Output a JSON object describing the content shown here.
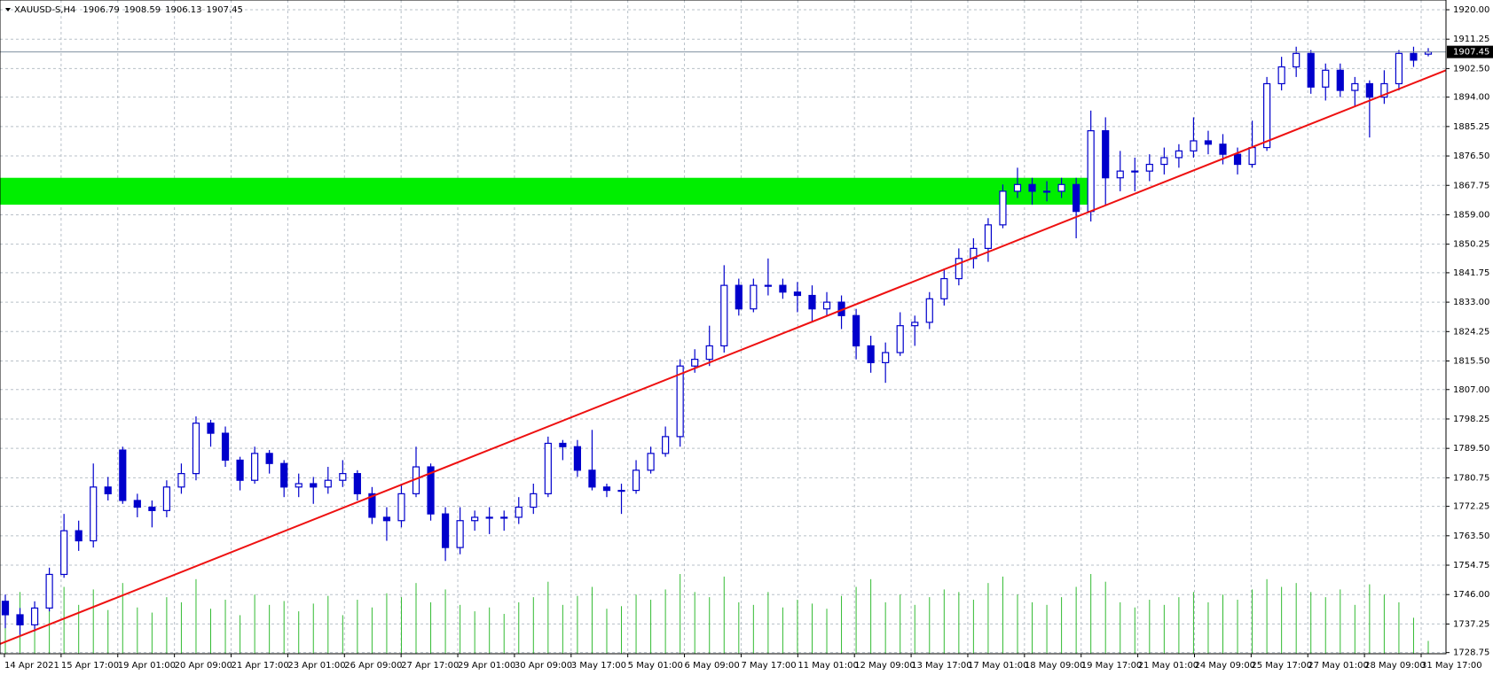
{
  "chart_data": {
    "type": "candlestick",
    "symbol": "XAUUSD-S,H4",
    "ylim": [
      1728.4,
      1922.9
    ],
    "yticks": [
      {
        "value": 1920,
        "label": "1920.00"
      },
      {
        "value": 1911.25,
        "label": "1911.25"
      },
      {
        "value": 1902.5,
        "label": "1902.50"
      },
      {
        "value": 1894,
        "label": "1894.00"
      },
      {
        "value": 1885.25,
        "label": "1885.25"
      },
      {
        "value": 1876.5,
        "label": "1876.50"
      },
      {
        "value": 1867.75,
        "label": "1867.75"
      },
      {
        "value": 1859,
        "label": "1859.00"
      },
      {
        "value": 1850.25,
        "label": "1850.25"
      },
      {
        "value": 1841.75,
        "label": "1841.75"
      },
      {
        "value": 1833,
        "label": "1833.00"
      },
      {
        "value": 1824.25,
        "label": "1824.25"
      },
      {
        "value": 1815.5,
        "label": "1815.50"
      },
      {
        "value": 1807,
        "label": "1807.00"
      },
      {
        "value": 1798.25,
        "label": "1798.25"
      },
      {
        "value": 1789.5,
        "label": "1789.50"
      },
      {
        "value": 1780.75,
        "label": "1780.75"
      },
      {
        "value": 1772.25,
        "label": "1772.25"
      },
      {
        "value": 1763.5,
        "label": "1763.50"
      },
      {
        "value": 1754.75,
        "label": "1754.75"
      },
      {
        "value": 1746,
        "label": "1746.00"
      },
      {
        "value": 1737.25,
        "label": "1737.25"
      },
      {
        "value": 1728.75,
        "label": "1728.75"
      }
    ],
    "x_labels": [
      "14 Apr 2021",
      "15 Apr 17:00",
      "19 Apr 01:00",
      "20 Apr 09:00",
      "21 Apr 17:00",
      "23 Apr 01:00",
      "26 Apr 09:00",
      "27 Apr 17:00",
      "29 Apr 01:00",
      "30 Apr 09:00",
      "3 May 17:00",
      "5 May 01:00",
      "6 May 09:00",
      "7 May 17:00",
      "11 May 01:00",
      "12 May 09:00",
      "13 May 17:00",
      "17 May 01:00",
      "18 May 09:00",
      "19 May 17:00",
      "21 May 01:00",
      "24 May 09:00",
      "25 May 17:00",
      "27 May 01:00",
      "28 May 09:00",
      "31 May 17:00"
    ],
    "grid": true,
    "candle_color": "#0000cc",
    "volume_color": "#33bb33",
    "zone": {
      "low": 1862,
      "high": 1870,
      "color": "#00ee00"
    },
    "trendline": {
      "start": 1731.3,
      "end": 1902,
      "color": "#ee1111"
    },
    "candles": [
      [
        1744,
        1746,
        1736,
        1740
      ],
      [
        1740,
        1742,
        1734,
        1737
      ],
      [
        1737,
        1744,
        1735,
        1742
      ],
      [
        1742,
        1754,
        1741,
        1752
      ],
      [
        1752,
        1770,
        1751,
        1765
      ],
      [
        1765,
        1768,
        1759,
        1762
      ],
      [
        1762,
        1785,
        1760,
        1778
      ],
      [
        1778,
        1781,
        1774,
        1776
      ],
      [
        1789,
        1790,
        1773,
        1774
      ],
      [
        1774,
        1776,
        1769,
        1772
      ],
      [
        1772,
        1774,
        1766,
        1771
      ],
      [
        1771,
        1780,
        1769,
        1778
      ],
      [
        1778,
        1785,
        1776,
        1782
      ],
      [
        1782,
        1799,
        1780,
        1797
      ],
      [
        1797,
        1798,
        1790,
        1794
      ],
      [
        1794,
        1796,
        1784,
        1786
      ],
      [
        1786,
        1787,
        1777,
        1780
      ],
      [
        1780,
        1790,
        1779,
        1788
      ],
      [
        1788,
        1789,
        1782,
        1785
      ],
      [
        1785,
        1786,
        1775,
        1778
      ],
      [
        1778,
        1782,
        1775,
        1779
      ],
      [
        1779,
        1781,
        1773,
        1778
      ],
      [
        1778,
        1784,
        1776,
        1780
      ],
      [
        1780,
        1786,
        1778,
        1782
      ],
      [
        1782,
        1783,
        1774,
        1776
      ],
      [
        1776,
        1778,
        1767,
        1769
      ],
      [
        1769,
        1772,
        1762,
        1768
      ],
      [
        1768,
        1779,
        1766,
        1776
      ],
      [
        1776,
        1790,
        1775,
        1784
      ],
      [
        1784,
        1785,
        1768,
        1770
      ],
      [
        1770,
        1772,
        1756,
        1760
      ],
      [
        1760,
        1772,
        1758,
        1768
      ],
      [
        1768,
        1771,
        1765,
        1769
      ],
      [
        1769,
        1772,
        1764,
        1769
      ],
      [
        1769,
        1771,
        1765,
        1769
      ],
      [
        1769,
        1775,
        1767,
        1772
      ],
      [
        1772,
        1779,
        1770,
        1776
      ],
      [
        1776,
        1793,
        1775,
        1791
      ],
      [
        1791,
        1792,
        1786,
        1790
      ],
      [
        1790,
        1792,
        1781,
        1783
      ],
      [
        1783,
        1795,
        1777,
        1778
      ],
      [
        1778,
        1779,
        1775,
        1777
      ],
      [
        1777,
        1779,
        1770,
        1777
      ],
      [
        1777,
        1786,
        1776,
        1783
      ],
      [
        1783,
        1790,
        1782,
        1788
      ],
      [
        1788,
        1796,
        1787,
        1793
      ],
      [
        1793,
        1816,
        1790,
        1814
      ],
      [
        1814,
        1819,
        1812,
        1816
      ],
      [
        1816,
        1826,
        1814,
        1820
      ],
      [
        1820,
        1844,
        1818,
        1838
      ],
      [
        1838,
        1840,
        1829,
        1831
      ],
      [
        1831,
        1840,
        1830,
        1838
      ],
      [
        1838,
        1846,
        1835,
        1838
      ],
      [
        1838,
        1840,
        1834,
        1836
      ],
      [
        1836,
        1839,
        1830,
        1835
      ],
      [
        1835,
        1838,
        1827,
        1831
      ],
      [
        1831,
        1836,
        1829,
        1833
      ],
      [
        1833,
        1835,
        1825,
        1829
      ],
      [
        1829,
        1831,
        1816,
        1820
      ],
      [
        1820,
        1823,
        1812,
        1815
      ],
      [
        1815,
        1821,
        1809,
        1818
      ],
      [
        1818,
        1830,
        1817,
        1826
      ],
      [
        1826,
        1829,
        1820,
        1827
      ],
      [
        1827,
        1836,
        1825,
        1834
      ],
      [
        1834,
        1843,
        1832,
        1840
      ],
      [
        1840,
        1849,
        1838,
        1846
      ],
      [
        1846,
        1852,
        1843,
        1849
      ],
      [
        1849,
        1858,
        1845,
        1856
      ],
      [
        1856,
        1868,
        1855,
        1866
      ],
      [
        1866,
        1873,
        1864,
        1868
      ],
      [
        1868,
        1870,
        1862,
        1866
      ],
      [
        1866,
        1869,
        1863,
        1866
      ],
      [
        1866,
        1870,
        1864,
        1868
      ],
      [
        1868,
        1870,
        1852,
        1860
      ],
      [
        1860,
        1890,
        1857,
        1884
      ],
      [
        1884,
        1888,
        1862,
        1870
      ],
      [
        1870,
        1878,
        1866,
        1872
      ],
      [
        1872,
        1876,
        1866,
        1872
      ],
      [
        1872,
        1877,
        1869,
        1874
      ],
      [
        1874,
        1879,
        1871,
        1876
      ],
      [
        1876,
        1880,
        1873,
        1878
      ],
      [
        1878,
        1888,
        1876,
        1881
      ],
      [
        1881,
        1884,
        1877,
        1880
      ],
      [
        1880,
        1883,
        1874,
        1877
      ],
      [
        1877,
        1879,
        1871,
        1874
      ],
      [
        1874,
        1887,
        1873,
        1879
      ],
      [
        1879,
        1900,
        1878,
        1898
      ],
      [
        1898,
        1906,
        1896,
        1903
      ],
      [
        1903,
        1909,
        1900,
        1907
      ],
      [
        1907,
        1908,
        1895,
        1897
      ],
      [
        1897,
        1904,
        1893,
        1902
      ],
      [
        1902,
        1904,
        1894,
        1896
      ],
      [
        1896,
        1900,
        1891,
        1898
      ],
      [
        1898,
        1899,
        1882,
        1894
      ],
      [
        1894,
        1902,
        1892,
        1898
      ],
      [
        1898,
        1908,
        1896,
        1907
      ],
      [
        1907,
        1909,
        1903,
        1905
      ],
      [
        1906.79,
        1908.59,
        1906.13,
        1907.45
      ]
    ],
    "volumes": [
      40,
      48,
      30,
      45,
      52,
      38,
      50,
      34,
      55,
      36,
      32,
      44,
      40,
      58,
      35,
      42,
      30,
      46,
      38,
      41,
      33,
      39,
      45,
      30,
      42,
      36,
      47,
      44,
      55,
      40,
      50,
      38,
      33,
      36,
      31,
      40,
      44,
      56,
      38,
      45,
      52,
      35,
      37,
      46,
      42,
      50,
      62,
      48,
      44,
      60,
      40,
      38,
      48,
      36,
      42,
      39,
      35,
      45,
      52,
      58,
      40,
      46,
      38,
      44,
      50,
      48,
      42,
      55,
      60,
      46,
      40,
      38,
      44,
      52,
      62,
      56,
      40,
      36,
      42,
      38,
      44,
      48,
      40,
      46,
      42,
      50,
      58,
      52,
      55,
      48,
      44,
      50,
      38,
      54,
      46,
      40,
      28,
      10
    ]
  }
}
